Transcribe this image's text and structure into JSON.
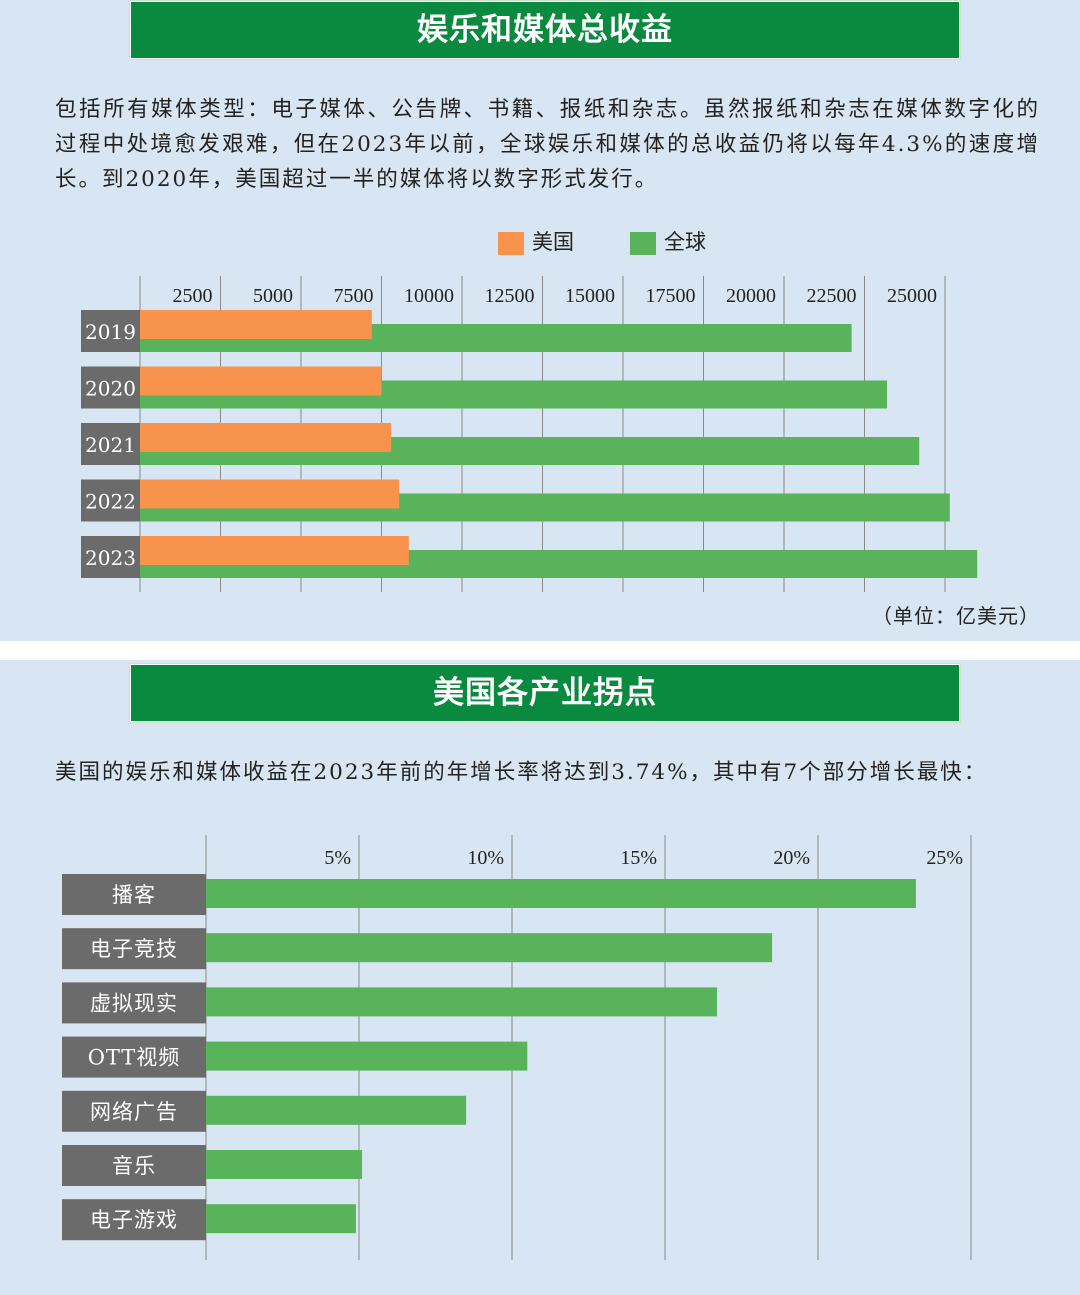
{
  "section1": {
    "title": "娱乐和媒体总收益",
    "paragraph": "包括所有媒体类型：电子媒体、公告牌、书籍、报纸和杂志。虽然报纸和杂志在媒体数字化的过程中处境愈发艰难，但在2023年以前，全球娱乐和媒体的总收益仍将以每年4.3%的速度增长。到2020年，美国超过一半的媒体将以数字形式发行。",
    "unit": "（单位：亿美元）"
  },
  "section2": {
    "title": "美国各产业拐点",
    "paragraph": "美国的娱乐和媒体收益在2023年前的年增长率将达到3.74%，其中有7个部分增长最快："
  },
  "colors": {
    "us": "#f7934c",
    "global": "#58b35a",
    "banner": "#0a8a3e",
    "label_bg": "#6b6b6b",
    "bg": "#d7e6f2"
  },
  "chart_data": [
    {
      "type": "bar",
      "orientation": "horizontal",
      "categories": [
        "2019",
        "2020",
        "2021",
        "2022",
        "2023"
      ],
      "series": [
        {
          "name": "美国",
          "values": [
            7200,
            7500,
            7800,
            8050,
            8350
          ]
        },
        {
          "name": "全球",
          "values": [
            22100,
            23200,
            24200,
            25150,
            26000
          ]
        }
      ],
      "x_ticks": [
        "2500",
        "5000",
        "7500",
        "10000",
        "12500",
        "15000",
        "17500",
        "20000",
        "22500",
        "25000"
      ],
      "xlim": [
        0,
        25000
      ],
      "grid": true,
      "legend": "top"
    },
    {
      "type": "bar",
      "orientation": "horizontal",
      "categories": [
        "播客",
        "电子竞技",
        "虚拟现实",
        "OTT视频",
        "网络广告",
        "音乐",
        "电子游戏"
      ],
      "values": [
        23.2,
        18.5,
        16.7,
        10.5,
        8.5,
        5.1,
        4.9
      ],
      "x_ticks": [
        "5%",
        "10%",
        "15%",
        "20%",
        "25%"
      ],
      "xlim": [
        0,
        25
      ],
      "grid": true
    }
  ]
}
